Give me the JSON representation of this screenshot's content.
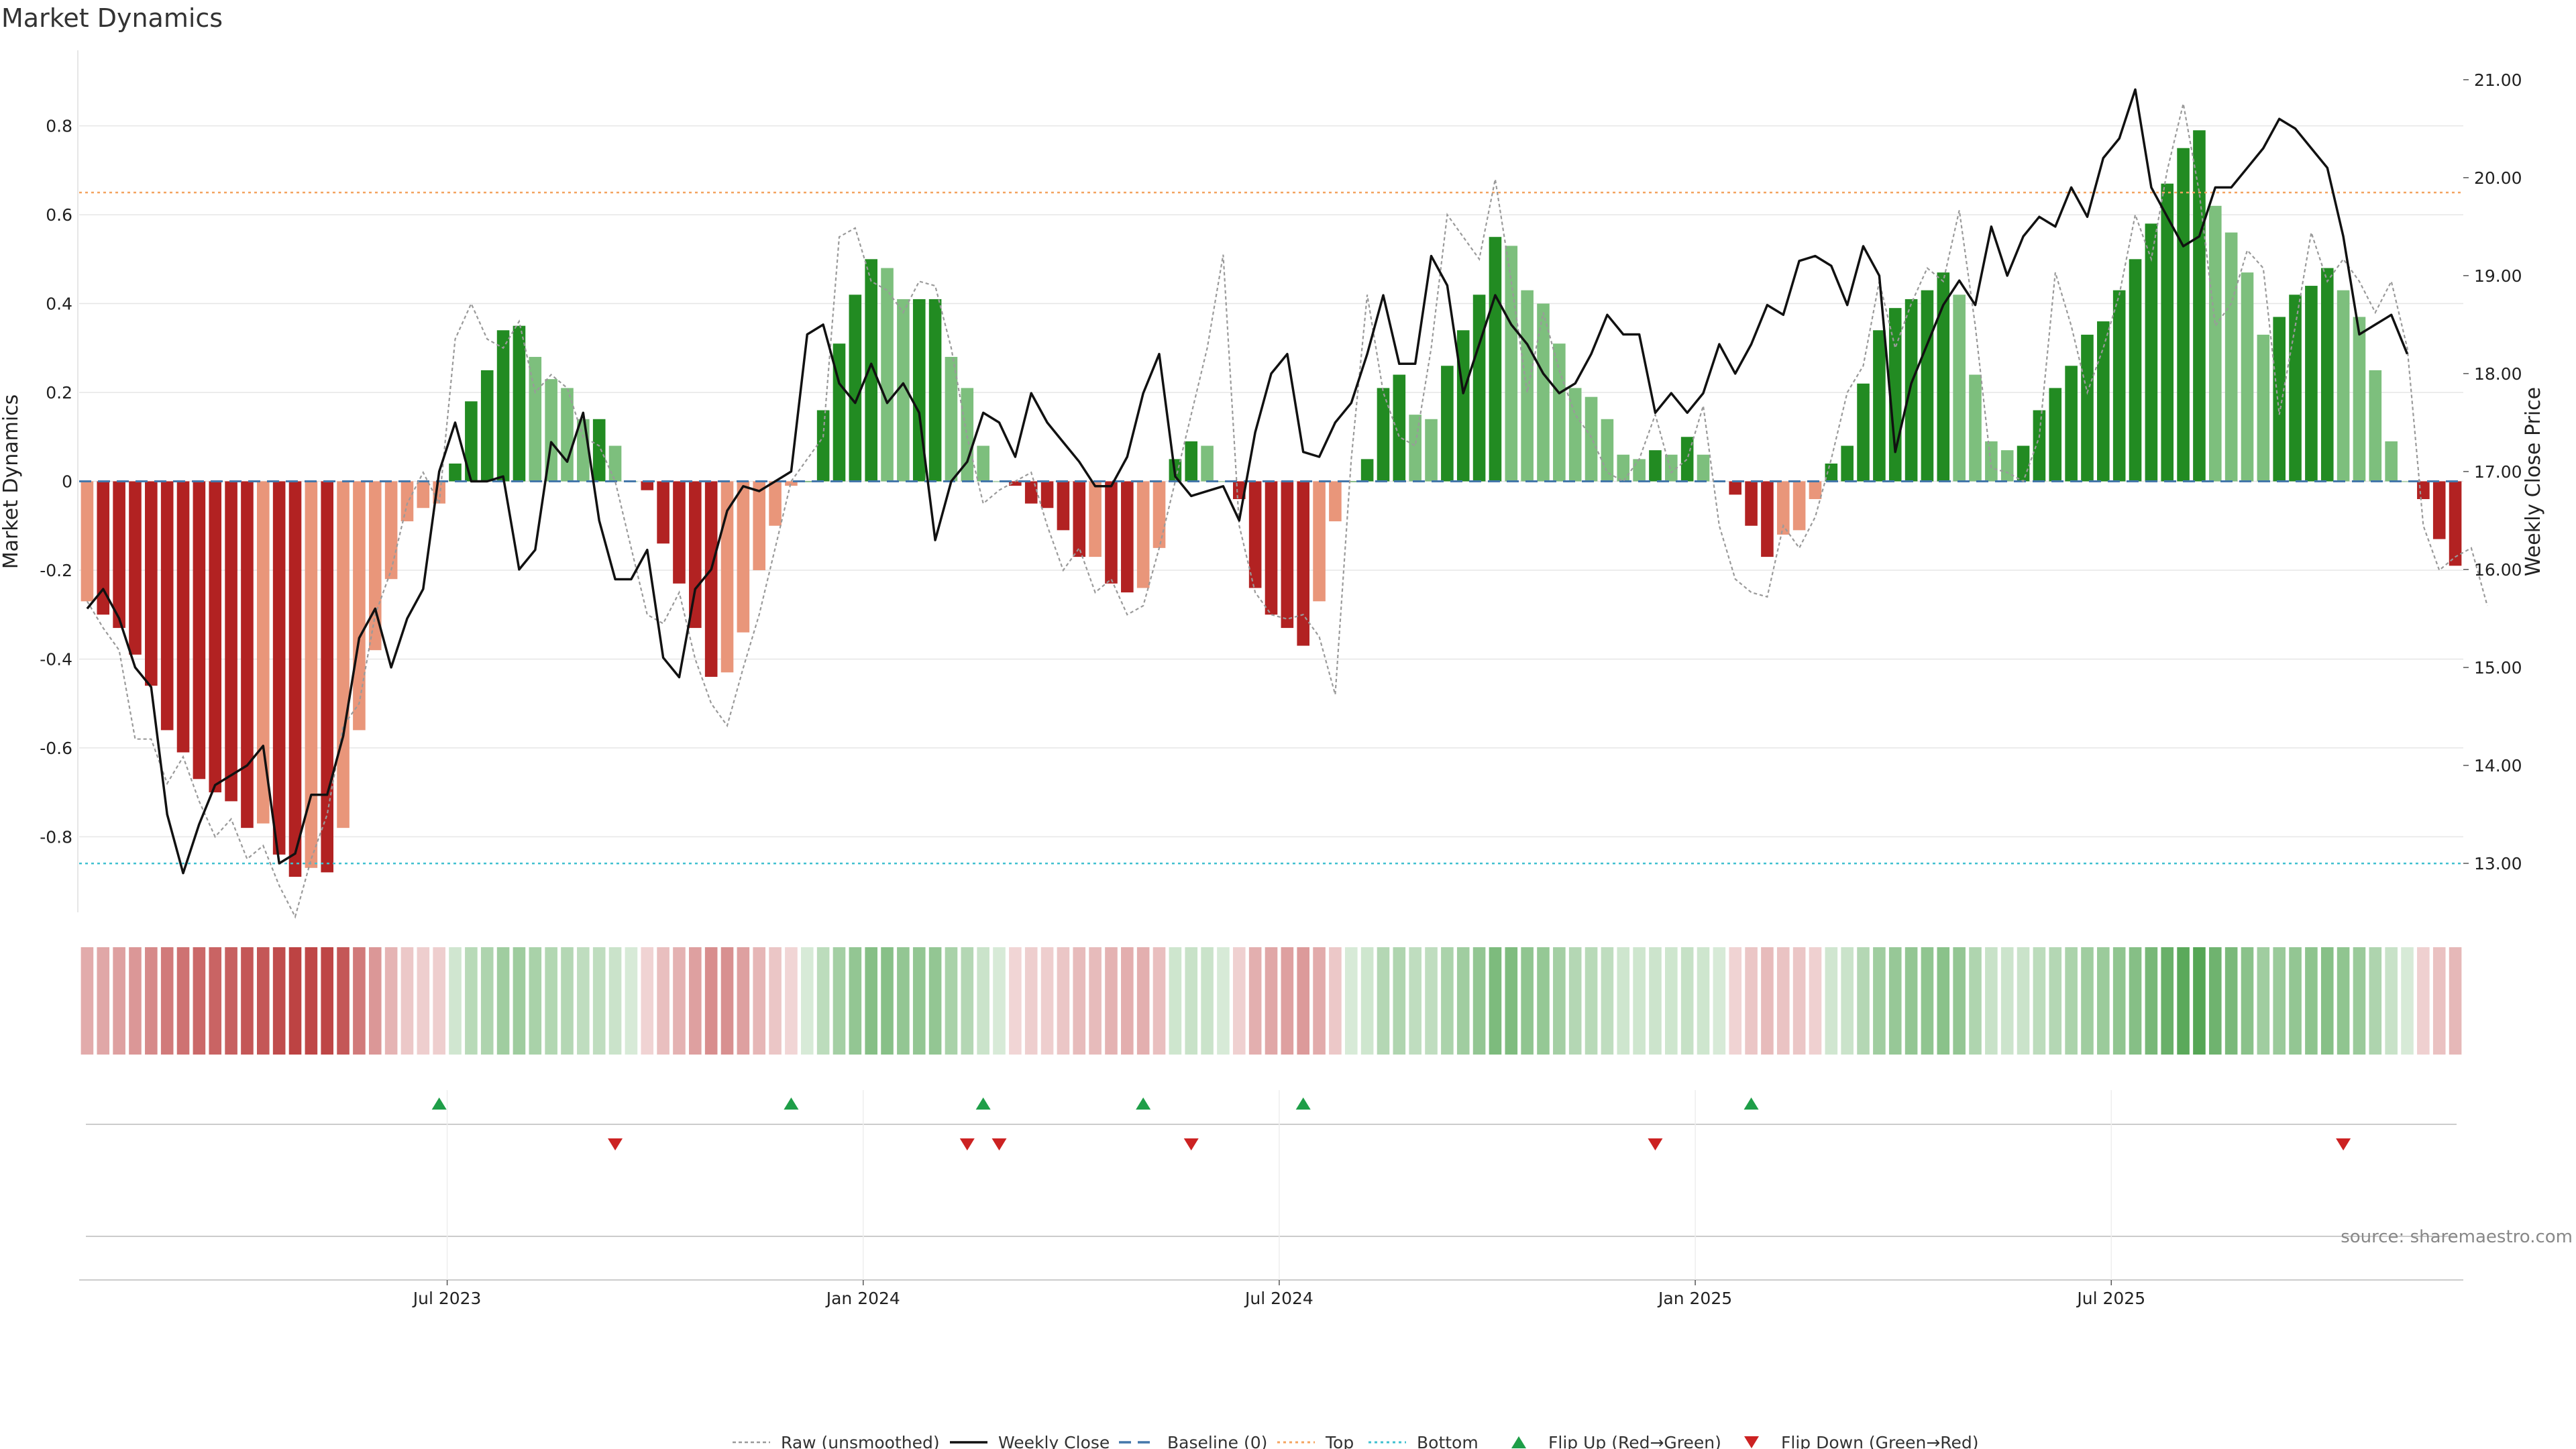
{
  "page": {
    "title": "Market Dynamics",
    "source": "source: sharemaestro.com"
  },
  "chart_data": {
    "type": "bar",
    "title": "Market Dynamics",
    "ylabel_left": "Market Dynamics",
    "ylabel_right": "Weekly Close Price",
    "ylim_left": [
      -0.97,
      0.97
    ],
    "ylim_right": [
      12.5,
      21.3
    ],
    "left_ticks": [
      "-0.8",
      "-0.6",
      "-0.4",
      "-0.2",
      "0",
      "0.2",
      "0.4",
      "0.6",
      "0.8"
    ],
    "right_ticks": [
      "13.00",
      "14.00",
      "15.00",
      "16.00",
      "17.00",
      "18.00",
      "19.00",
      "20.00",
      "21.00"
    ],
    "x_ticks": [
      {
        "label": "Jul 2023",
        "week": 23
      },
      {
        "label": "Jan 2024",
        "week": 49
      },
      {
        "label": "Jul 2024",
        "week": 75
      },
      {
        "label": "Jan 2025",
        "week": 101
      },
      {
        "label": "Jul 2025",
        "week": 127
      }
    ],
    "top_level": 0.65,
    "bottom_level": -0.86,
    "start_week": "Feb 2023 (weekly)",
    "dynamics": [
      -0.27,
      -0.3,
      -0.33,
      -0.39,
      -0.46,
      -0.56,
      -0.61,
      -0.67,
      -0.7,
      -0.72,
      -0.78,
      -0.77,
      -0.84,
      -0.89,
      -0.87,
      -0.88,
      -0.78,
      -0.56,
      -0.38,
      -0.22,
      -0.09,
      -0.06,
      -0.05,
      0.04,
      0.18,
      0.25,
      0.34,
      0.35,
      0.28,
      0.23,
      0.21,
      0.14,
      0.14,
      0.08,
      0.0,
      -0.02,
      -0.14,
      -0.23,
      -0.33,
      -0.44,
      -0.43,
      -0.34,
      -0.2,
      -0.1,
      -0.01,
      0.0,
      0.16,
      0.31,
      0.42,
      0.5,
      0.48,
      0.41,
      0.41,
      0.41,
      0.28,
      0.21,
      0.08,
      0.0,
      -0.01,
      -0.05,
      -0.06,
      -0.11,
      -0.17,
      -0.17,
      -0.23,
      -0.25,
      -0.24,
      -0.15,
      0.05,
      0.09,
      0.08,
      0.0,
      -0.04,
      -0.24,
      -0.3,
      -0.33,
      -0.37,
      -0.27,
      -0.09,
      0.0,
      0.05,
      0.21,
      0.24,
      0.15,
      0.14,
      0.26,
      0.34,
      0.42,
      0.55,
      0.53,
      0.43,
      0.4,
      0.31,
      0.21,
      0.19,
      0.14,
      0.06,
      0.05,
      0.07,
      0.06,
      0.1,
      0.06,
      0.0,
      -0.03,
      -0.1,
      -0.17,
      -0.12,
      -0.11,
      -0.04,
      0.04,
      0.08,
      0.22,
      0.34,
      0.39,
      0.41,
      0.43,
      0.47,
      0.42,
      0.24,
      0.09,
      0.07,
      0.08,
      0.16,
      0.21,
      0.26,
      0.33,
      0.36,
      0.43,
      0.5,
      0.58,
      0.67,
      0.75,
      0.79,
      0.62,
      0.56,
      0.47,
      0.33,
      0.37,
      0.42,
      0.44,
      0.48,
      0.43,
      0.37,
      0.25,
      0.09,
      0.0,
      -0.04,
      -0.13,
      -0.19
    ],
    "raw": [
      -0.27,
      -0.33,
      -0.38,
      -0.58,
      -0.58,
      -0.68,
      -0.62,
      -0.72,
      -0.8,
      -0.76,
      -0.85,
      -0.82,
      -0.91,
      -0.98,
      -0.85,
      -0.75,
      -0.55,
      -0.5,
      -0.3,
      -0.2,
      -0.05,
      0.02,
      -0.05,
      0.32,
      0.4,
      0.32,
      0.3,
      0.36,
      0.2,
      0.24,
      0.21,
      0.1,
      0.08,
      0.0,
      -0.15,
      -0.3,
      -0.32,
      -0.25,
      -0.4,
      -0.5,
      -0.55,
      -0.42,
      -0.3,
      -0.15,
      0.0,
      0.05,
      0.1,
      0.55,
      0.57,
      0.45,
      0.43,
      0.38,
      0.45,
      0.44,
      0.3,
      0.1,
      -0.05,
      -0.02,
      0.0,
      0.02,
      -0.1,
      -0.2,
      -0.15,
      -0.25,
      -0.22,
      -0.3,
      -0.28,
      -0.15,
      0.0,
      0.15,
      0.3,
      0.51,
      -0.1,
      -0.25,
      -0.3,
      -0.31,
      -0.3,
      -0.35,
      -0.48,
      0.05,
      0.42,
      0.2,
      0.1,
      0.08,
      0.3,
      0.6,
      0.55,
      0.5,
      0.68,
      0.45,
      0.2,
      0.38,
      0.25,
      0.15,
      0.1,
      0.02,
      0.0,
      0.05,
      0.15,
      0.02,
      0.05,
      0.17,
      -0.1,
      -0.22,
      -0.25,
      -0.26,
      -0.1,
      -0.15,
      -0.08,
      0.05,
      0.2,
      0.26,
      0.45,
      0.3,
      0.4,
      0.48,
      0.45,
      0.61,
      0.35,
      0.03,
      0.02,
      0.0,
      0.1,
      0.47,
      0.35,
      0.2,
      0.3,
      0.42,
      0.6,
      0.5,
      0.7,
      0.85,
      0.65,
      0.35,
      0.4,
      0.52,
      0.48,
      0.15,
      0.35,
      0.56,
      0.45,
      0.5,
      0.45,
      0.38,
      0.45,
      0.3,
      -0.1,
      -0.2,
      -0.17,
      -0.15,
      -0.28
    ],
    "close": [
      15.6,
      15.8,
      15.5,
      15.0,
      14.8,
      13.5,
      12.9,
      13.4,
      13.8,
      13.9,
      14.0,
      14.2,
      13.0,
      13.1,
      13.7,
      13.7,
      14.3,
      15.3,
      15.6,
      15.0,
      15.5,
      15.8,
      17.0,
      17.5,
      16.9,
      16.9,
      16.95,
      16.0,
      16.2,
      17.3,
      17.1,
      17.6,
      16.5,
      15.9,
      15.9,
      16.2,
      15.1,
      14.9,
      15.8,
      16.0,
      16.6,
      16.85,
      16.8,
      16.9,
      17.0,
      18.4,
      18.5,
      17.9,
      17.7,
      18.1,
      17.7,
      17.9,
      17.6,
      16.3,
      16.9,
      17.1,
      17.6,
      17.5,
      17.15,
      17.8,
      17.5,
      17.3,
      17.1,
      16.85,
      16.85,
      17.15,
      17.8,
      18.2,
      16.95,
      16.75,
      16.8,
      16.85,
      16.5,
      17.4,
      18.0,
      18.2,
      17.2,
      17.15,
      17.5,
      17.7,
      18.2,
      18.8,
      18.1,
      18.1,
      19.2,
      18.9,
      17.8,
      18.3,
      18.8,
      18.5,
      18.3,
      18.0,
      17.8,
      17.9,
      18.2,
      18.6,
      18.4,
      18.4,
      17.6,
      17.8,
      17.6,
      17.8,
      18.3,
      18.0,
      18.3,
      18.7,
      18.6,
      19.15,
      19.2,
      19.1,
      18.7,
      19.3,
      19.0,
      17.2,
      17.9,
      18.3,
      18.7,
      18.95,
      18.7,
      19.5,
      19.0,
      19.4,
      19.6,
      19.5,
      19.9,
      19.6,
      20.2,
      20.4,
      20.9,
      19.9,
      19.6,
      19.3,
      19.4,
      19.9,
      19.9,
      20.1,
      20.3,
      20.6,
      20.5,
      20.3,
      20.1,
      19.4,
      18.4,
      18.5,
      18.6,
      18.2
    ],
    "flip_up_weeks": [
      22,
      44,
      56,
      66,
      76,
      104
    ],
    "flip_down_weeks": [
      33,
      55,
      57,
      69,
      98,
      141
    ],
    "legend": [
      "Raw (unsmoothed)",
      "Weekly Close",
      "Baseline (0)",
      "Top",
      "Bottom",
      "Flip Up (Red→Green)",
      "Flip Down (Green→Red)"
    ]
  },
  "colors": {
    "strong_green": "#228b22",
    "light_green": "#7dbf7d",
    "strong_red": "#b22222",
    "light_red": "#e9967a",
    "top_line": "#f4a460",
    "bottom_line": "#40c0d0",
    "baseline": "#4477aa",
    "flip_up": "#1e9e48",
    "flip_down": "#cc2222"
  }
}
